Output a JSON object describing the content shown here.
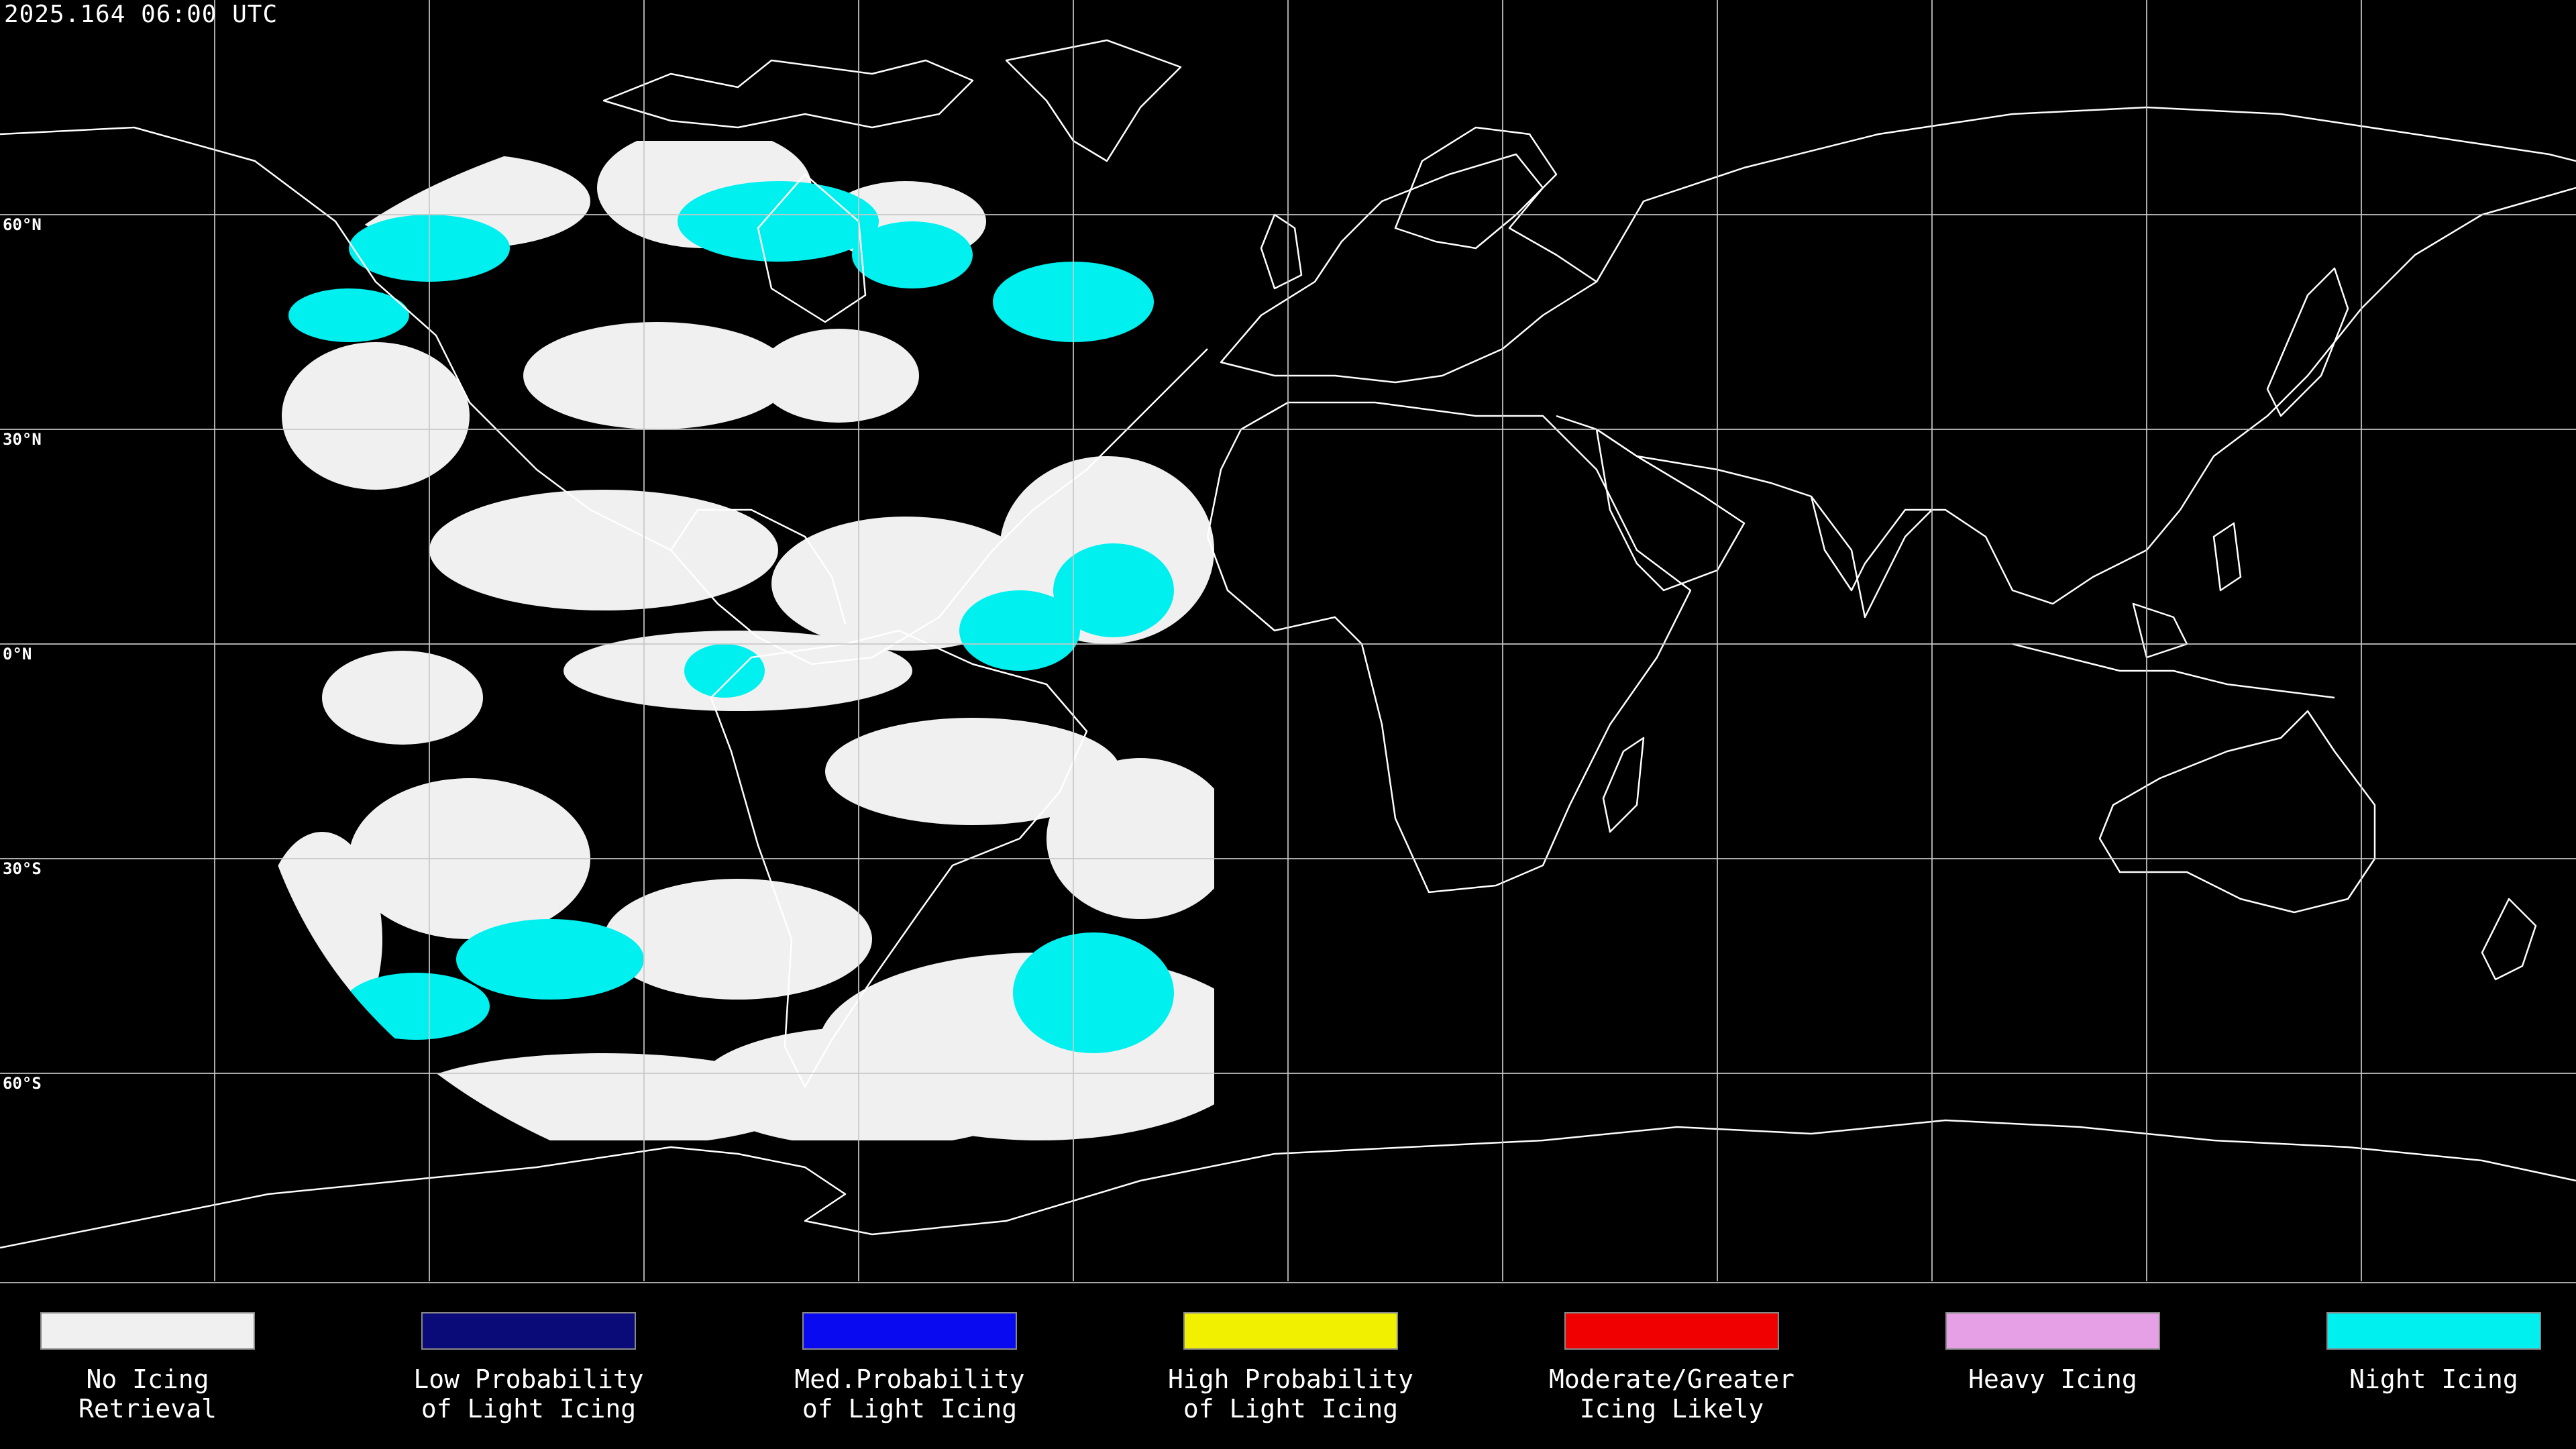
{
  "timestamp": "2025.164 06:00 UTC",
  "lat_labels": [
    "60°N",
    "30°N",
    "0°N",
    "30°S",
    "60°S"
  ],
  "colors": {
    "background": "#000000",
    "grid": "#c8c8c8",
    "coast": "#ffffff",
    "no_icing_cloud": "#f0f0f0",
    "night_icing": "#00f0f0"
  },
  "legend": [
    {
      "label": "No Icing\nRetrieval",
      "color": "#f0f0f0"
    },
    {
      "label": "Low Probability\nof Light Icing",
      "color": "#0a0a78"
    },
    {
      "label": "Med.Probability\nof Light Icing",
      "color": "#0a0af0"
    },
    {
      "label": "High Probability\nof Light Icing",
      "color": "#f0f000"
    },
    {
      "label": "Moderate/Greater\nIcing Likely",
      "color": "#f00000"
    },
    {
      "label": "Heavy Icing",
      "color": "#e6a0e6"
    },
    {
      "label": "Night Icing",
      "color": "#00f0f0"
    }
  ]
}
